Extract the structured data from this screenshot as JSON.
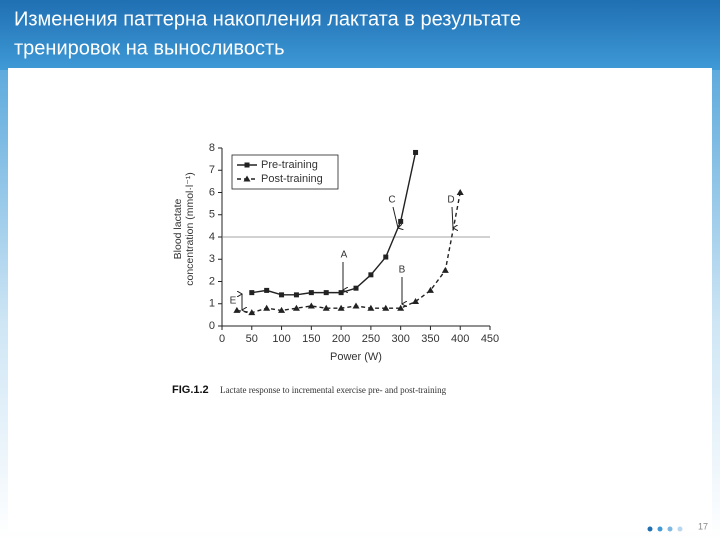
{
  "slide": {
    "title": [
      "Изменения паттерна накопления лактата в результате",
      "тренировок на выносливость"
    ],
    "page_number": "17"
  },
  "chart_data": {
    "type": "line",
    "xlabel": "Power (W)",
    "ylabel": [
      "Blood lactate",
      "concentration (mmol·l⁻¹)"
    ],
    "caption": {
      "label": "FIG.1.2",
      "text": "Lactate response to incremental exercise pre- and post-training"
    },
    "xlim": [
      0,
      450
    ],
    "xticks": [
      0,
      50,
      100,
      150,
      200,
      250,
      300,
      350,
      400,
      450
    ],
    "ylim": [
      0,
      8
    ],
    "yticks": [
      0,
      1,
      2,
      3,
      4,
      5,
      6,
      7,
      8
    ],
    "hline": 4,
    "legend": "top-left",
    "series": [
      {
        "name": "Pre-training",
        "color": "#222222",
        "dash": false,
        "marker": "square",
        "x": [
          50,
          75,
          100,
          125,
          150,
          175,
          200,
          225,
          250,
          275,
          300,
          325
        ],
        "values": [
          1.5,
          1.6,
          1.4,
          1.4,
          1.5,
          1.5,
          1.5,
          1.7,
          2.3,
          3.1,
          4.7,
          7.8
        ]
      },
      {
        "name": "Post-training",
        "color": "#222222",
        "dash": true,
        "marker": "triangle",
        "x": [
          25,
          50,
          75,
          100,
          125,
          150,
          175,
          200,
          225,
          250,
          275,
          300,
          325,
          350,
          375,
          400
        ],
        "values": [
          0.7,
          0.6,
          0.8,
          0.7,
          0.8,
          0.9,
          0.8,
          0.8,
          0.9,
          0.8,
          0.8,
          0.8,
          1.1,
          1.6,
          2.5,
          6.0
        ]
      }
    ],
    "annotations": [
      "A",
      "B",
      "C",
      "D",
      "E"
    ]
  }
}
